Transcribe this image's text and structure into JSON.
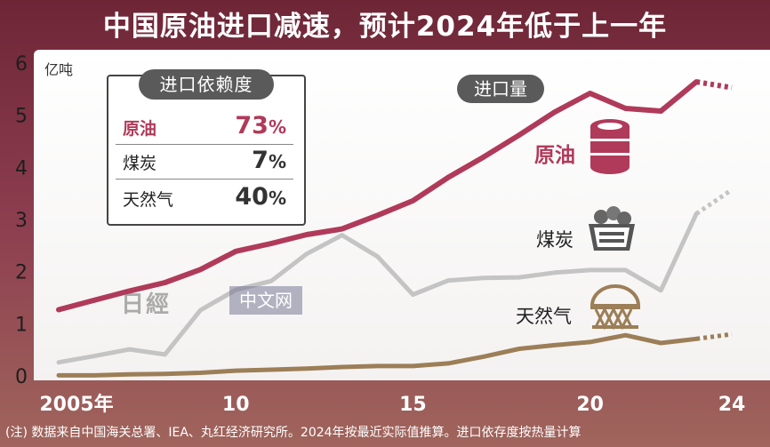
{
  "title": "中国原油进口减速，预计2024年低于上一年",
  "unit_label": "亿吨",
  "dependency_box": {
    "title": "进口依赖度",
    "rows": [
      {
        "name": "原油",
        "value": "73",
        "pct": "%"
      },
      {
        "name": "煤炭",
        "value": "7",
        "pct": "%"
      },
      {
        "name": "天然气",
        "value": "40",
        "pct": "%"
      }
    ]
  },
  "volume_label": "进口量",
  "watermark": {
    "logo": "日經",
    "text": "中文网"
  },
  "note": "(注) 数据来自中国海关总署、IEA、丸红经济研究所。2024年按最近实际值推算。进口依存度按热量计算",
  "colors": {
    "oil": "#b03a5a",
    "coal": "#c4c4c4",
    "gas": "#9c7e57"
  },
  "icons": [
    "oil-barrel-icon",
    "coal-cart-icon",
    "gas-tank-icon"
  ],
  "chart_data": {
    "type": "line",
    "x": [
      2005,
      2006,
      2007,
      2008,
      2009,
      2010,
      2011,
      2012,
      2013,
      2014,
      2015,
      2016,
      2017,
      2018,
      2019,
      2020,
      2021,
      2022,
      2023,
      2024
    ],
    "x_tick_values": [
      2005,
      2010,
      2015,
      2020,
      2024
    ],
    "x_tick_labels": [
      "2005年",
      "10",
      "15",
      "20",
      "24"
    ],
    "ylabel": "亿吨",
    "ylim": [
      0,
      6
    ],
    "y_ticks": [
      0,
      1,
      2,
      3,
      4,
      5,
      6
    ],
    "estimated_from": 2023,
    "series": [
      {
        "name": "原油",
        "key": "oil",
        "values": [
          1.27,
          1.45,
          1.63,
          1.79,
          2.04,
          2.39,
          2.54,
          2.71,
          2.82,
          3.08,
          3.36,
          3.81,
          4.2,
          4.62,
          5.06,
          5.42,
          5.13,
          5.08,
          5.64,
          5.53
        ]
      },
      {
        "name": "煤炭",
        "key": "coal",
        "values": [
          0.26,
          0.38,
          0.51,
          0.41,
          1.26,
          1.65,
          1.82,
          2.34,
          2.7,
          2.29,
          1.56,
          1.83,
          1.88,
          1.89,
          1.98,
          2.03,
          2.03,
          1.64,
          3.11,
          3.57
        ]
      },
      {
        "name": "天然气",
        "key": "gas",
        "values": [
          0.01,
          0.01,
          0.03,
          0.04,
          0.06,
          0.1,
          0.12,
          0.14,
          0.17,
          0.19,
          0.19,
          0.24,
          0.37,
          0.52,
          0.59,
          0.65,
          0.78,
          0.63,
          0.71,
          0.8
        ]
      }
    ]
  }
}
